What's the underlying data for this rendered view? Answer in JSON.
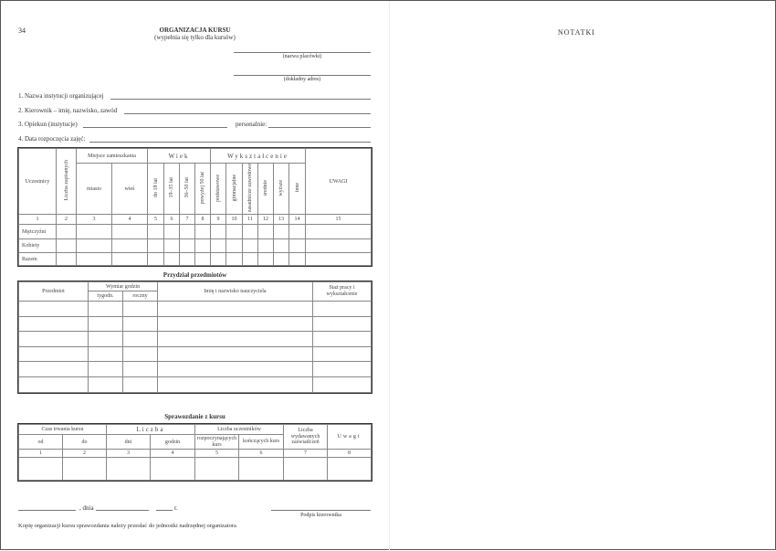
{
  "page_number": "34",
  "title": "ORGANIZACJA KURSU",
  "subtitle": "(wypełnia się tylko dla kursów)",
  "right_page_title": "NOTATKI",
  "placowka_label": "(nazwa placówki)",
  "adres_label": "(dokładny adres)",
  "fields": [
    "1. Nazwa instytucji organizującej",
    "2. Kierownik – imię, nazwisko, zawód",
    "3. Opiekun (instytucje)",
    "4. Data rozpoczęcia zajęć:"
  ],
  "personalnie_label": "personalnie:",
  "table1": {
    "uczestnicy": "Uczestnicy",
    "liczba": "Liczba zapisanych",
    "miejsce": "Miejsce zamieszkania",
    "miasto": "miasto",
    "wies": "wieś",
    "wiek": "Wiek",
    "wiek_cols": [
      "do 18 lat",
      "19–35 lat",
      "36–50 lat",
      "powyżej 50 lat"
    ],
    "wyksztalcenie": "Wykształcenie",
    "wyk_cols": [
      "podstawowe",
      "gimnazjalne",
      "zasadnicze zawodowe",
      "średnie",
      "wyższe",
      "inne"
    ],
    "uwagi": "UWAGI",
    "numbers": [
      "1",
      "2",
      "3",
      "4",
      "5",
      "6",
      "7",
      "8",
      "9",
      "10",
      "11",
      "12",
      "13",
      "14",
      "15"
    ],
    "rows": [
      "Mężczyźni",
      "Kobiety",
      "Razem"
    ]
  },
  "table2": {
    "title": "Przydział przedmiotów",
    "przedmiot": "Przedmiot",
    "wymiar": "Wymiar godzin",
    "tygodn": "tygodn.",
    "roczny": "roczny",
    "imie": "Imię i nazwisko nauczyciela",
    "staz": "Staż pracy i wykształcenie"
  },
  "table3": {
    "title": "Sprawozdanie z kursu",
    "czas": "Czas trwania kursu",
    "od": "od",
    "do": "do",
    "liczba": "Liczba",
    "dni": "dni",
    "godzin": "godzin",
    "uczestnikow": "Liczba uczestników",
    "rozp": "rozpoczynających kurs",
    "konc": "kończących kurs",
    "zaswiad": "Liczba wydawanych zaświadczeń",
    "uwagi": "Uwagi",
    "numbers": [
      "1",
      "2",
      "3",
      "4",
      "5",
      "6",
      "7",
      "8"
    ]
  },
  "footer": {
    "dnia": ", dnia",
    "r": "r.",
    "podpis": "Podpis kierownika",
    "note": "Kopię organizacji kursu sprawozdania należy przesłać do jednostki nadrzędnej organizatora"
  }
}
